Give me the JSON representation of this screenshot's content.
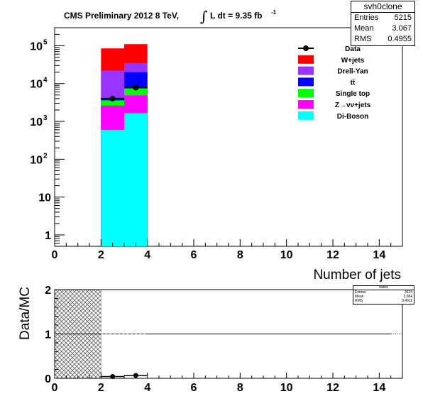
{
  "chart_data": [
    {
      "type": "bar",
      "subtype": "stacked-histogram-log",
      "title_main": "CMS Preliminary 2012 8 TeV,",
      "title_lumi": "L dt = 9.35 fb",
      "title_lumi_sup": "-1",
      "xlabel": "Number of jets",
      "ylabel": "",
      "y_scale": "log",
      "xlim": [
        0,
        15
      ],
      "ylim": [
        0.5,
        300000
      ],
      "x_ticks": [
        "0",
        "2",
        "4",
        "6",
        "8",
        "10",
        "12",
        "14"
      ],
      "y_ticks": [
        {
          "value": 1,
          "label": "1"
        },
        {
          "value": 10,
          "label": "10"
        },
        {
          "value": 100,
          "label": "10",
          "sup": "2"
        },
        {
          "value": 1000,
          "label": "10",
          "sup": "3"
        },
        {
          "value": 10000,
          "label": "10",
          "sup": "4"
        },
        {
          "value": 100000,
          "label": "10",
          "sup": "5"
        }
      ],
      "bin_edges": [
        2,
        3,
        4
      ],
      "stack": [
        {
          "name": "Di-Boson",
          "color": "#00ffff",
          "values": [
            600,
            1650
          ]
        },
        {
          "name": "Z→νν+jets",
          "color": "#ff00ff",
          "values": [
            2600,
            4900
          ]
        },
        {
          "name": "Single top",
          "color": "#00ff00",
          "values": [
            3600,
            8000
          ]
        },
        {
          "name": "tt̅",
          "color": "#0000ff",
          "values": [
            4200,
            20000
          ]
        },
        {
          "name": "Drell-Yan",
          "color": "#9933ff",
          "values": [
            22000,
            35000
          ]
        },
        {
          "name": "W+jets",
          "color": "#ff0000",
          "values": [
            85000,
            110000
          ]
        }
      ],
      "data_series": {
        "name": "Data",
        "x": [
          2.5,
          3.5
        ],
        "y": [
          4000,
          7800
        ],
        "x_err": 0.5
      },
      "legend": {
        "placement": "top-right",
        "entries": [
          {
            "label": "Data",
            "kind": "marker",
            "color": "#000000"
          },
          {
            "label": "W+jets",
            "kind": "box",
            "color": "#ff0000"
          },
          {
            "label": "Drell-Yan",
            "kind": "box",
            "color": "#9933ff"
          },
          {
            "label": "tt̅",
            "kind": "box",
            "color": "#0000ff"
          },
          {
            "label": "Single top",
            "kind": "box",
            "color": "#00ff00"
          },
          {
            "label": "Z→νν+jets",
            "kind": "box",
            "color": "#ff00ff"
          },
          {
            "label": "Di-Boson",
            "kind": "box",
            "color": "#00ffff"
          }
        ]
      },
      "stats_box": {
        "title": "svh0clone",
        "rows": [
          {
            "label": "Entries",
            "value": "5215"
          },
          {
            "label": "Mean",
            "value": "3.067"
          },
          {
            "label": "RMS",
            "value": "0.4955"
          }
        ]
      }
    },
    {
      "type": "scatter",
      "subtype": "ratio-plot",
      "ylabel": "Data/MC",
      "xlim": [
        0,
        15
      ],
      "ylim": [
        0,
        2
      ],
      "x_ticks": [
        "0",
        "2",
        "4",
        "6",
        "8",
        "10",
        "12",
        "14"
      ],
      "y_ticks": [
        "0",
        "1",
        "2"
      ],
      "reference_line": 1,
      "hatched_band": {
        "x": [
          0,
          2
        ],
        "y": [
          0,
          2
        ]
      },
      "points": {
        "x": [
          2.5,
          3.5
        ],
        "y": [
          0.04,
          0.065
        ],
        "x_err": 0.5
      },
      "stats_box": {
        "title": "data4",
        "rows": [
          {
            "label": "Entries",
            "value": "3624"
          },
          {
            "label": "Mean",
            "value": "3.084"
          },
          {
            "label": "RMS",
            "value": "0.4911"
          }
        ]
      }
    }
  ]
}
